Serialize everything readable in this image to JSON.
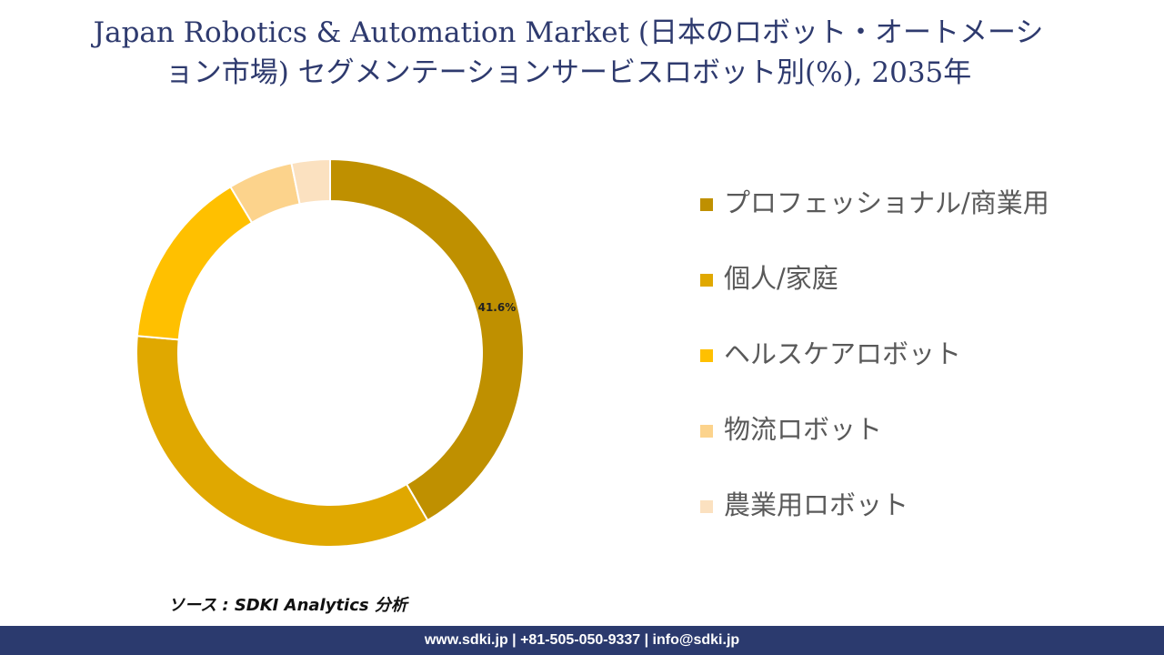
{
  "chart_data": {
    "type": "donut",
    "title": "Japan Robotics & Automation Market (日本のロボット・オートメーション市場) セグメンテーションサービスロボット別(%), 2035年",
    "categories": [
      "プロフェッショナル/商業用",
      "個人/家庭",
      "ヘルスケアロボット",
      "物流ロボット",
      "農業用ロボット"
    ],
    "values": [
      41.6,
      34.8,
      15.0,
      5.4,
      3.2
    ],
    "value_labels": [
      "41.6%",
      null,
      null,
      null,
      null
    ],
    "colors": [
      "#bf9000",
      "#e0a800",
      "#ffc000",
      "#fcd38c",
      "#fbe1c0"
    ],
    "legend": "right"
  },
  "source": "ソース : SDKI Analytics 分析",
  "footer": "www.sdki.jp | +81-505-050-9337 | info@sdki.jp"
}
